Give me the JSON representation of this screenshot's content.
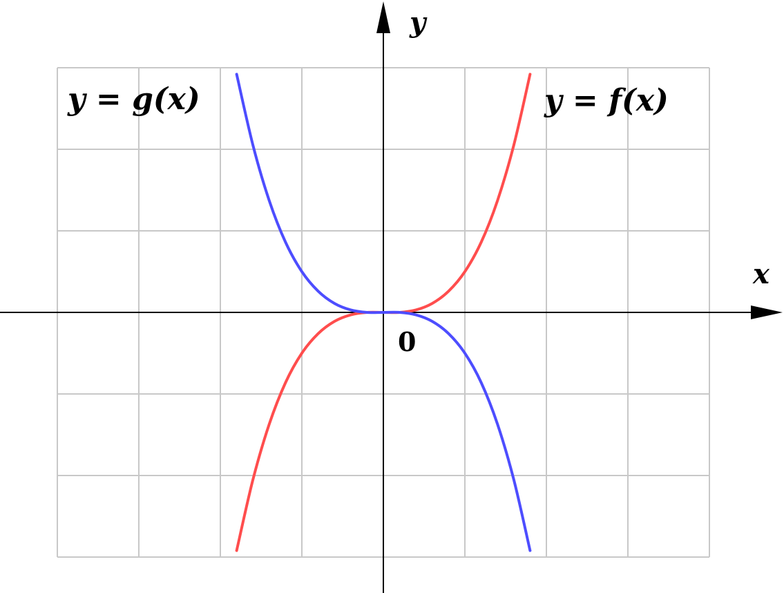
{
  "chart_data": {
    "type": "line",
    "title": "",
    "xlabel": "x",
    "ylabel": "y",
    "origin_label": "0",
    "xlim": [
      -4,
      4
    ],
    "ylim": [
      -3,
      3
    ],
    "grid": true,
    "grid_step": 1,
    "series": [
      {
        "name": "y = f(x)",
        "color": "#ff4d4d",
        "x": [
          -1.8,
          -1.6,
          -1.4,
          -1.2,
          -1.0,
          -0.8,
          -0.6,
          -0.4,
          -0.2,
          0.0,
          0.2,
          0.4,
          0.6,
          0.8,
          1.0,
          1.2,
          1.4,
          1.6,
          1.8
        ],
        "y": [
          -2.92,
          -2.05,
          -1.37,
          -0.86,
          -0.5,
          -0.26,
          -0.11,
          -0.03,
          0.0,
          0.0,
          0.0,
          0.03,
          0.11,
          0.26,
          0.5,
          0.86,
          1.37,
          2.05,
          2.92
        ]
      },
      {
        "name": "y = g(x)",
        "color": "#4d4dff",
        "x": [
          -1.8,
          -1.6,
          -1.4,
          -1.2,
          -1.0,
          -0.8,
          -0.6,
          -0.4,
          -0.2,
          0.0,
          0.2,
          0.4,
          0.6,
          0.8,
          1.0,
          1.2,
          1.4,
          1.6,
          1.8
        ],
        "y": [
          2.92,
          2.05,
          1.37,
          0.86,
          0.5,
          0.26,
          0.11,
          0.03,
          0.0,
          0.0,
          0.0,
          -0.03,
          -0.11,
          -0.26,
          -0.5,
          -0.86,
          -1.37,
          -2.05,
          -2.92
        ]
      }
    ]
  }
}
